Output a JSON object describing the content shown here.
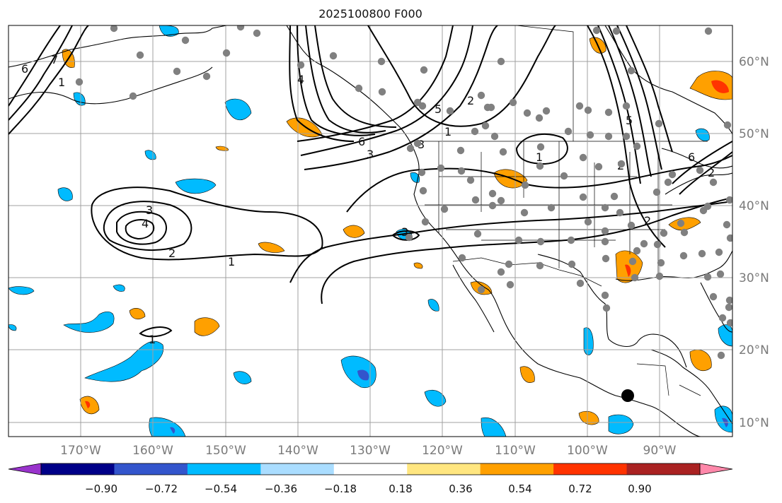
{
  "title": "2025100800 F000",
  "lon_labels": [
    "170°W",
    "160°W",
    "150°W",
    "140°W",
    "130°W",
    "120°W",
    "110°W",
    "100°W",
    "90°W"
  ],
  "lat_labels": [
    "60°N",
    "50°N",
    "40°N",
    "30°N",
    "20°N",
    "10°N"
  ],
  "colorbar": {
    "ticks": [
      "−0.90",
      "−0.72",
      "−0.54",
      "−0.36",
      "−0.18",
      "0.18",
      "0.36",
      "0.54",
      "0.72",
      "0.90"
    ],
    "colors": [
      "#9933cc",
      "#000088",
      "#3355cc",
      "#00bbff",
      "#aaddff",
      "#ffffff",
      "#ffe680",
      "#ffa000",
      "#ff3300",
      "#aa2222",
      "#ff88aa"
    ]
  },
  "contour_labels": [
    "6",
    "7",
    "1",
    "2",
    "4",
    "3",
    "6",
    "5",
    "3",
    "1",
    "2",
    "1",
    "3",
    "4",
    "2",
    "1",
    "3",
    "1",
    "2",
    "5",
    "6",
    "2"
  ],
  "colors": {
    "land_outline": "#000000",
    "grid": "#a0a0a0",
    "station": "#808080",
    "marker": "#000000"
  }
}
